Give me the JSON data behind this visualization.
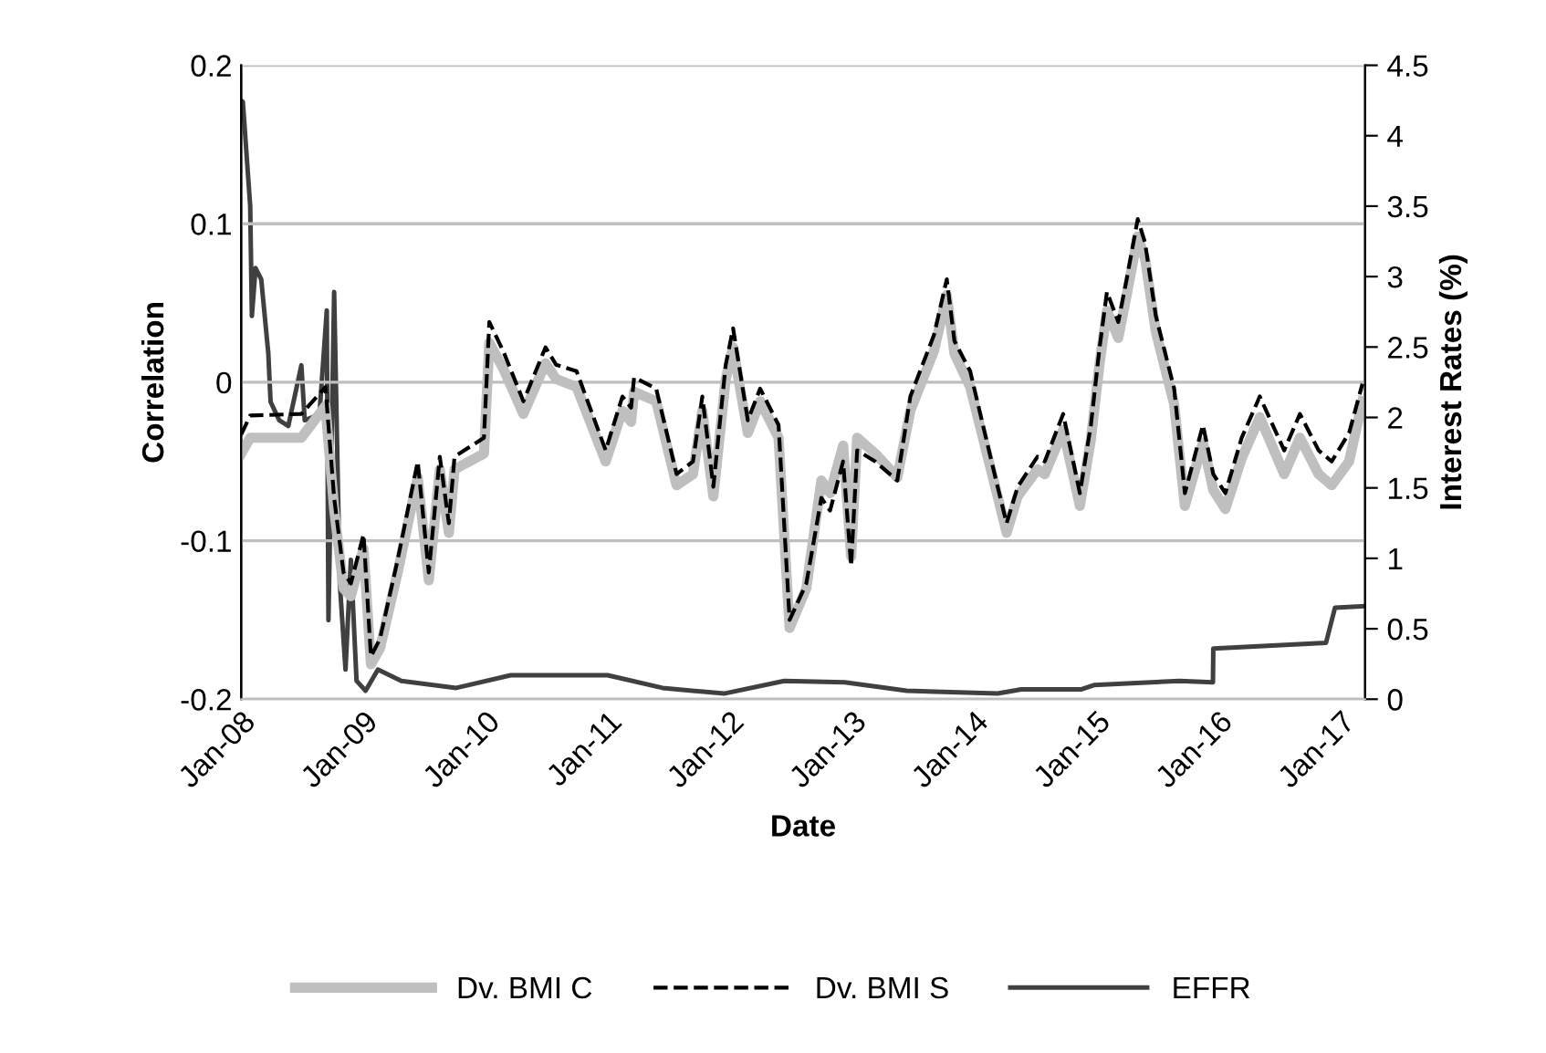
{
  "chart_data": {
    "type": "line",
    "xlabel": "Date",
    "ylabel": "Correlation",
    "y2label": "Interest Rates (%)",
    "x": [
      "2008-01-01",
      "2008-01-28",
      "2008-06-29",
      "2008-09-09",
      "2008-10-05",
      "2008-11-02",
      "2008-11-24",
      "2009-01-01",
      "2009-01-23",
      "2009-02-19",
      "2009-04-13",
      "2009-06-12",
      "2009-07-15",
      "2009-08-17",
      "2009-09-13",
      "2009-09-30",
      "2009-12-27",
      "2010-01-12",
      "2010-02-24",
      "2010-04-24",
      "2010-06-29",
      "2010-07-31",
      "2010-09-30",
      "2010-12-26",
      "2011-02-14",
      "2011-03-12",
      "2011-03-21",
      "2011-05-26",
      "2011-07-26",
      "2011-09-13",
      "2011-10-11",
      "2011-11-13",
      "2011-12-20",
      "2012-01-11",
      "2012-02-24",
      "2012-04-01",
      "2012-05-26",
      "2012-06-28",
      "2012-08-17",
      "2012-10-01",
      "2012-10-27",
      "2012-12-05",
      "2012-12-29",
      "2013-01-16",
      "2013-03-11",
      "2013-05-16",
      "2013-06-24",
      "2013-09-03",
      "2013-10-11",
      "2013-11-03",
      "2013-12-20",
      "2014-01-27",
      "2014-03-12",
      "2014-04-08",
      "2014-05-11",
      "2014-07-09",
      "2014-07-31",
      "2014-09-24",
      "2014-11-13",
      "2014-12-16",
      "2015-01-11",
      "2015-02-02",
      "2015-03-08",
      "2015-04-02",
      "2015-05-05",
      "2015-05-27",
      "2015-06-28",
      "2015-08-22",
      "2015-09-23",
      "2015-11-16",
      "2015-12-17",
      "2016-01-22",
      "2016-03-11",
      "2016-05-04",
      "2016-07-16",
      "2016-09-01",
      "2016-10-27",
      "2016-12-05",
      "2017-01-26",
      "2017-03-07"
    ],
    "series": [
      {
        "name": "Dv. BMI C",
        "color": "#bfbfbf",
        "line_style": "solid",
        "values": [
          -0.045,
          -0.035,
          -0.035,
          -0.015,
          -0.08,
          -0.13,
          -0.135,
          -0.105,
          -0.178,
          -0.168,
          -0.12,
          -0.06,
          -0.125,
          -0.055,
          -0.095,
          -0.055,
          -0.045,
          0.025,
          0.008,
          -0.02,
          0.012,
          0.002,
          -0.003,
          -0.05,
          -0.018,
          -0.025,
          -0.006,
          -0.012,
          -0.065,
          -0.058,
          -0.018,
          -0.072,
          0.002,
          0.022,
          -0.032,
          -0.012,
          -0.035,
          -0.155,
          -0.13,
          -0.062,
          -0.07,
          -0.04,
          -0.11,
          -0.035,
          -0.045,
          -0.06,
          -0.018,
          0.02,
          0.055,
          0.018,
          -0.003,
          -0.035,
          -0.072,
          -0.095,
          -0.072,
          -0.055,
          -0.058,
          -0.03,
          -0.078,
          -0.036,
          0.012,
          0.045,
          0.028,
          0.055,
          0.092,
          0.078,
          0.032,
          -0.014,
          -0.078,
          -0.038,
          -0.068,
          -0.08,
          -0.048,
          -0.022,
          -0.058,
          -0.035,
          -0.058,
          -0.065,
          -0.05,
          -0.012
        ]
      },
      {
        "name": "Dv. BMI S",
        "color": "#000000",
        "line_style": "dashed",
        "values": [
          -0.033,
          -0.021,
          -0.02,
          -0.003,
          -0.073,
          -0.12,
          -0.127,
          -0.096,
          -0.173,
          -0.162,
          -0.112,
          -0.05,
          -0.12,
          -0.047,
          -0.089,
          -0.047,
          -0.035,
          0.038,
          0.019,
          -0.012,
          0.022,
          0.011,
          0.007,
          -0.043,
          -0.009,
          -0.016,
          0.003,
          -0.004,
          -0.058,
          -0.05,
          -0.009,
          -0.066,
          0.011,
          0.034,
          -0.024,
          -0.004,
          -0.027,
          -0.15,
          -0.127,
          -0.073,
          -0.081,
          -0.05,
          -0.116,
          -0.043,
          -0.05,
          -0.062,
          -0.009,
          0.03,
          0.065,
          0.026,
          0.007,
          -0.027,
          -0.066,
          -0.089,
          -0.066,
          -0.047,
          -0.05,
          -0.02,
          -0.07,
          -0.027,
          0.022,
          0.057,
          0.038,
          0.065,
          0.103,
          0.088,
          0.042,
          -0.004,
          -0.07,
          -0.027,
          -0.058,
          -0.07,
          -0.035,
          -0.009,
          -0.043,
          -0.02,
          -0.043,
          -0.05,
          -0.032,
          -0.001
        ]
      },
      {
        "name": "EFFR",
        "color": "#404040",
        "line_style": "solid",
        "axis": "y2",
        "x": [
          "2008-01-01",
          "2008-01-06",
          "2008-01-28",
          "2008-02-02",
          "2008-02-13",
          "2008-03-01",
          "2008-03-22",
          "2008-03-29",
          "2008-04-24",
          "2008-05-21",
          "2008-06-29",
          "2008-07-09",
          "2008-08-22",
          "2008-09-13",
          "2008-09-18",
          "2008-10-05",
          "2008-10-22",
          "2008-11-08",
          "2008-11-24",
          "2008-12-11",
          "2009-01-07",
          "2009-02-13",
          "2009-04-24",
          "2009-10-05",
          "2010-03-17",
          "2011-01-01",
          "2011-06-14",
          "2011-12-15",
          "2012-06-12",
          "2012-12-10",
          "2013-06-13",
          "2014-03-12",
          "2014-05-22",
          "2014-11-18",
          "2014-12-25",
          "2015-09-07",
          "2015-12-16",
          "2015-12-17",
          "2016-11-18",
          "2016-12-15",
          "2017-03-15"
        ],
        "values": [
          4.25,
          4.24,
          3.5,
          2.72,
          3.06,
          2.98,
          2.46,
          2.11,
          1.98,
          1.94,
          2.37,
          1.98,
          2.02,
          2.76,
          0.56,
          2.89,
          0.82,
          0.21,
          0.99,
          0.13,
          0.06,
          0.21,
          0.13,
          0.08,
          0.17,
          0.17,
          0.08,
          0.04,
          0.13,
          0.12,
          0.06,
          0.04,
          0.07,
          0.07,
          0.1,
          0.13,
          0.12,
          0.36,
          0.4,
          0.65,
          0.66
        ]
      }
    ],
    "xlim": [
      "2008-01-01",
      "2017-03-15"
    ],
    "xticks": [
      {
        "value": "2008-01-01",
        "label": "Jan-08"
      },
      {
        "value": "2009-01-01",
        "label": "Jan-09"
      },
      {
        "value": "2010-01-01",
        "label": "Jan-10"
      },
      {
        "value": "2011-01-01",
        "label": "Jan-11"
      },
      {
        "value": "2012-01-01",
        "label": "Jan-12"
      },
      {
        "value": "2013-01-01",
        "label": "Jan-13"
      },
      {
        "value": "2014-01-01",
        "label": "Jan-14"
      },
      {
        "value": "2015-01-01",
        "label": "Jan-15"
      },
      {
        "value": "2016-01-01",
        "label": "Jan-16"
      },
      {
        "value": "2017-01-01",
        "label": "Jan-17"
      }
    ],
    "ylim": [
      -0.2,
      0.2
    ],
    "yticks": [
      {
        "value": -0.2,
        "label": "-0.2"
      },
      {
        "value": -0.1,
        "label": "-0.1"
      },
      0,
      0.1,
      0.2
    ],
    "y2lim": [
      0,
      4.5
    ],
    "y2ticks": [
      0,
      0.5,
      1,
      1.5,
      2,
      2.5,
      3,
      3.5,
      4,
      4.5
    ],
    "grid": "y",
    "legend": "bottom"
  }
}
